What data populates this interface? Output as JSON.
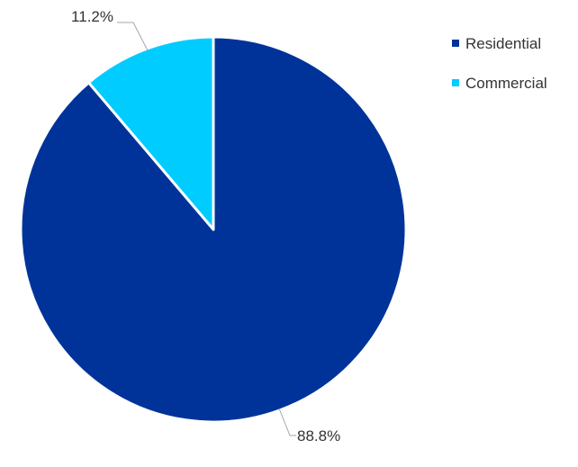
{
  "chart_data": {
    "type": "pie",
    "title": "",
    "categories": [
      "Residential",
      "Commercial"
    ],
    "values": [
      88.8,
      11.2
    ],
    "value_suffix": "%",
    "colors": [
      "#003399",
      "#00ccff"
    ],
    "data_labels": [
      "88.8%",
      "11.2%"
    ],
    "start_angle": "12 o'clock",
    "direction": "clockwise",
    "legend": {
      "position": "top-right",
      "entries": [
        "Residential",
        "Commercial"
      ]
    }
  }
}
